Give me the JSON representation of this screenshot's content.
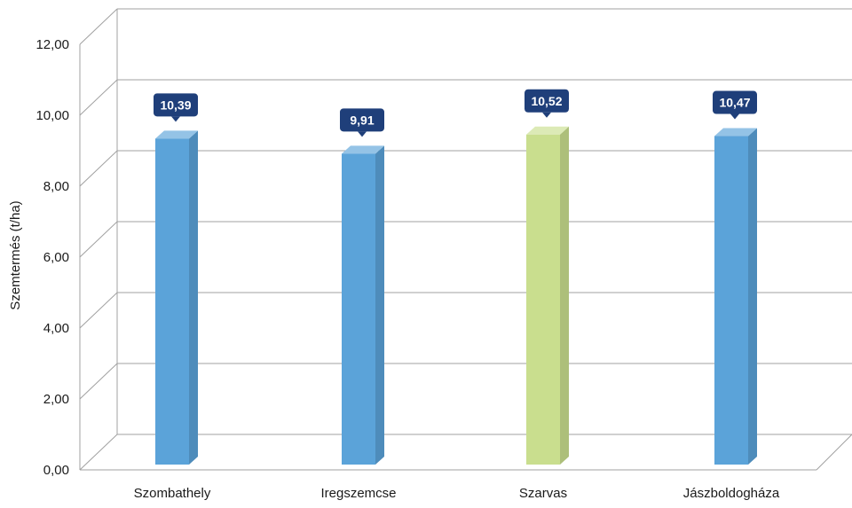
{
  "chart_data": {
    "type": "bar",
    "categories": [
      "Szombathely",
      "Iregszemcse",
      "Szarvas",
      "Jászboldogháza"
    ],
    "values": [
      10.39,
      9.91,
      10.52,
      10.47
    ],
    "value_labels": [
      "10,39",
      "9,91",
      "10,52",
      "10,47"
    ],
    "ylabel": "Szemtermés (t/ha)",
    "ylim": [
      0,
      12
    ],
    "yticks": [
      0,
      2,
      4,
      6,
      8,
      10,
      12
    ],
    "ytick_labels": [
      "0,00",
      "2,00",
      "4,00",
      "6,00",
      "8,00",
      "10,00",
      "12,00"
    ],
    "grid": true,
    "style": "3d-column",
    "colors": {
      "bar_default": "#5ba3d9",
      "bar_highlight": "#c9de8e",
      "label_bubble": "#1f3f7a",
      "grid": "#a0a0a0"
    },
    "highlight_index": 2
  }
}
